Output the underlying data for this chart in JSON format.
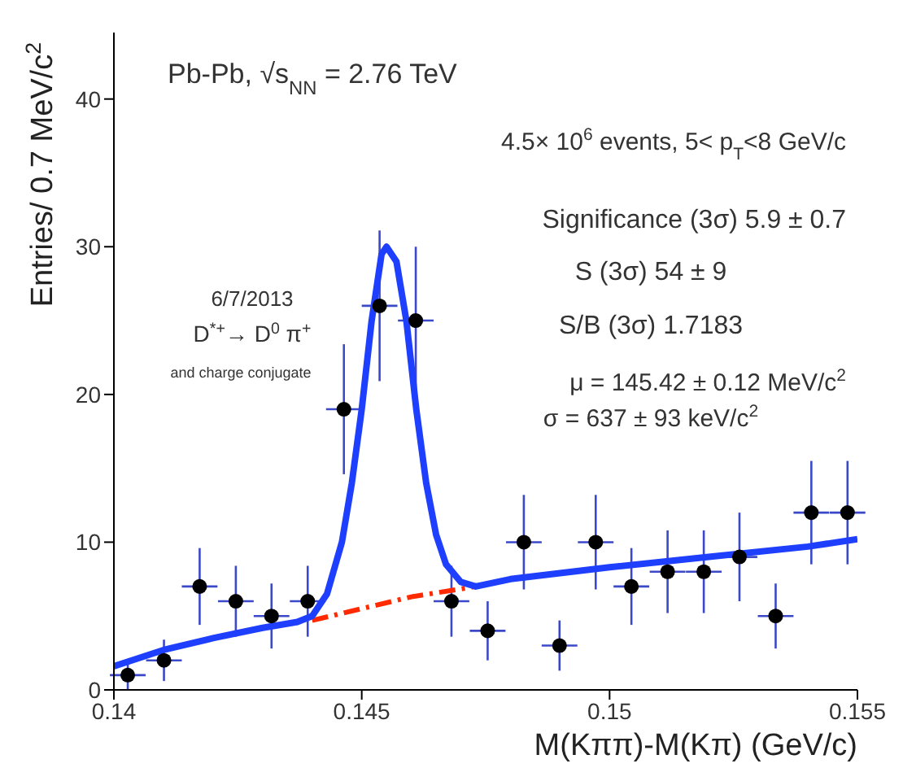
{
  "chart_data": {
    "type": "scatter",
    "xlabel": "M(Kππ)-M(Kπ) (GeV/c)",
    "ylabel": "Entries/ 0.7 MeV/c$^{2}$",
    "annotations": [
      "Pb-Pb, √s$_{NN}$ = 2.76 TeV",
      "4.5× 10$^{6}$ events, 5< p$_{T}$<8 GeV/c",
      "Significance (3σ) 5.9 ± 0.7",
      "S (3σ) 54 ± 9",
      "S/B (3σ) 1.7183",
      "μ = 145.42 ± 0.12  MeV/c$^{2}$",
      "σ = 637 ± 93  keV/c$^{2}$",
      "6/7/2013",
      "D$^{*+}$→ D$^{0}$ π$^{+}$",
      "and charge conjugate"
    ],
    "xlim": [
      0.14,
      0.155
    ],
    "xticks": [
      0.14,
      0.145,
      0.15,
      0.155
    ],
    "ylim": [
      0,
      44.5
    ],
    "yticks": [
      0,
      10,
      20,
      30,
      40
    ],
    "grid": false,
    "legend": false,
    "series": [
      {
        "color": "#000000",
        "marker": "circle",
        "x": [
          0.14028,
          0.14101,
          0.14173,
          0.14246,
          0.14318,
          0.14391,
          0.14464,
          0.14536,
          0.14609,
          0.14681,
          0.14754,
          0.14827,
          0.14899,
          0.14972,
          0.15044,
          0.15117,
          0.1519,
          0.15262,
          0.15335,
          0.15407,
          0.1548
        ],
        "values": [
          1,
          2,
          7,
          6,
          5,
          6,
          19,
          26,
          25,
          6,
          4,
          10,
          3,
          10,
          7,
          8,
          8,
          9,
          5,
          12,
          12
        ],
        "errors": [
          1,
          1.4,
          2.6,
          2.4,
          2.2,
          2.4,
          4.4,
          5.1,
          5,
          2.4,
          2,
          3.2,
          1.7,
          3.2,
          2.6,
          2.8,
          2.8,
          3,
          2.2,
          3.5,
          3.5
        ],
        "xerrors": [
          0.00036,
          0.00036,
          0.00036,
          0.00036,
          0.00036,
          0.00036,
          0.00036,
          0.00036,
          0.00036,
          0.00036,
          0.00036,
          0.00036,
          0.00036,
          0.00036,
          0.00036,
          0.00036,
          0.00036,
          0.00036,
          0.00036,
          0.00036,
          0.00036
        ]
      },
      {
        "type": "line",
        "color": "#ff2a00",
        "marker": "none",
        "line_style": "dashed",
        "x": [
          0.144,
          0.145,
          0.146,
          0.1473
        ],
        "values": [
          4.7,
          5.5,
          6.3,
          7.0
        ]
      },
      {
        "type": "line",
        "color": "#1f3fff",
        "marker": "none",
        "line_style": "solid",
        "x": [
          0.14,
          0.141,
          0.142,
          0.143,
          0.1437,
          0.144,
          0.1443,
          0.1446,
          0.1448,
          0.145,
          0.1452,
          0.1454,
          0.1455,
          0.1457,
          0.1459,
          0.1461,
          0.1463,
          0.1465,
          0.1467,
          0.147,
          0.1473,
          0.148,
          0.15,
          0.152,
          0.154,
          0.155
        ],
        "values": [
          1.6,
          2.7,
          3.5,
          4.2,
          4.6,
          5.0,
          6.5,
          10,
          14,
          19,
          25,
          29.5,
          30,
          29,
          25,
          19,
          14,
          10.5,
          8.5,
          7.3,
          7.0,
          7.5,
          8.3,
          9.0,
          9.7,
          10.2
        ]
      }
    ]
  }
}
